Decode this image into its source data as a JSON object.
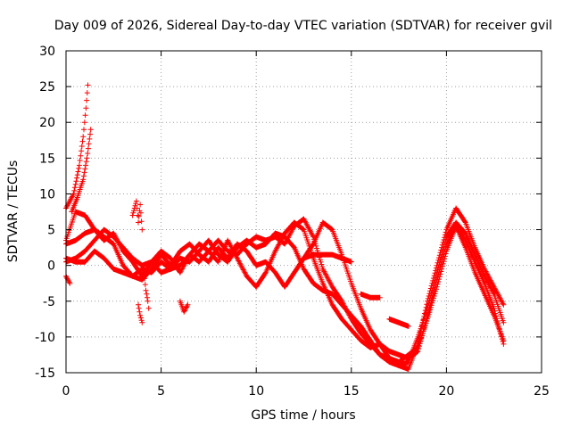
{
  "chart_data": {
    "type": "scatter",
    "title": "Day 009 of 2026, Sidereal Day-to-day VTEC variation (SDTVAR) for receiver gvil",
    "xlabel": "GPS time / hours",
    "ylabel": "SDTVAR / TECUs",
    "xlim": [
      0,
      25
    ],
    "ylim": [
      -15,
      30
    ],
    "xticks": [
      0,
      5,
      10,
      15,
      20,
      25
    ],
    "yticks": [
      -15,
      -10,
      -5,
      0,
      5,
      10,
      15,
      20,
      25,
      30
    ],
    "xtick_labels": [
      "0",
      "5",
      "10",
      "15",
      "20",
      "25"
    ],
    "ytick_labels": [
      "-15",
      "-10",
      "-5",
      "0",
      "5",
      "10",
      "15",
      "20",
      "25",
      "30"
    ],
    "grid": true,
    "marker": "+",
    "color": "#ff0000",
    "series": [
      {
        "name": "track-1",
        "points": [
          [
            0.0,
            8.0
          ],
          [
            0.4,
            10.0
          ],
          [
            0.7,
            14.0
          ],
          [
            0.9,
            18.0
          ],
          [
            1.05,
            22.0
          ],
          [
            1.15,
            25.2
          ]
        ]
      },
      {
        "name": "track-2",
        "points": [
          [
            0.3,
            7.5
          ],
          [
            0.6,
            9.5
          ],
          [
            0.9,
            12.0
          ],
          [
            1.1,
            15.0
          ],
          [
            1.3,
            19.0
          ]
        ]
      },
      {
        "name": "track-3",
        "points": [
          [
            0.0,
            3.5
          ],
          [
            0.5,
            7.5
          ],
          [
            1.0,
            7.0
          ],
          [
            1.5,
            5.0
          ],
          [
            2.0,
            3.5
          ],
          [
            2.5,
            4.5
          ],
          [
            3.0,
            2.0
          ],
          [
            3.5,
            0.5
          ],
          [
            4.0,
            -1.5
          ],
          [
            4.5,
            0.5
          ],
          [
            5.0,
            2.0
          ],
          [
            5.5,
            1.0
          ],
          [
            6.0,
            -1.0
          ],
          [
            6.5,
            1.5
          ],
          [
            7.0,
            3.0
          ],
          [
            7.5,
            2.0
          ],
          [
            8.0,
            0.5
          ],
          [
            8.5,
            3.5
          ],
          [
            9.0,
            1.0
          ],
          [
            9.5,
            -1.5
          ],
          [
            10.0,
            -3.0
          ],
          [
            10.5,
            -1.0
          ],
          [
            11.0,
            2.0
          ],
          [
            11.5,
            4.5
          ],
          [
            12.0,
            6.0
          ],
          [
            12.5,
            5.0
          ],
          [
            13.0,
            1.0
          ],
          [
            13.5,
            -2.5
          ],
          [
            14.0,
            -5.5
          ],
          [
            14.5,
            -7.5
          ],
          [
            15.0,
            -9.0
          ],
          [
            15.5,
            -10.5
          ],
          [
            16.0,
            -11.5
          ],
          [
            16.5,
            -11.0
          ],
          [
            17.0,
            -12.0
          ],
          [
            17.5,
            -12.5
          ],
          [
            18.0,
            -13.0
          ],
          [
            18.5,
            -12.0
          ],
          [
            19.0,
            -7.0
          ],
          [
            19.5,
            -2.0
          ],
          [
            20.0,
            3.0
          ],
          [
            20.5,
            5.5
          ],
          [
            21.0,
            3.5
          ],
          [
            21.5,
            0.5
          ],
          [
            22.0,
            -2.5
          ],
          [
            22.5,
            -6.0
          ],
          [
            23.0,
            -11.0
          ]
        ]
      },
      {
        "name": "track-4",
        "points": [
          [
            0.0,
            3.0
          ],
          [
            0.5,
            3.5
          ],
          [
            1.0,
            4.5
          ],
          [
            1.5,
            5.0
          ],
          [
            2.0,
            4.0
          ],
          [
            2.5,
            3.0
          ],
          [
            3.0,
            0.0
          ],
          [
            3.5,
            -1.5
          ],
          [
            4.0,
            -2.0
          ],
          [
            4.5,
            -0.5
          ],
          [
            5.0,
            1.5
          ],
          [
            5.5,
            0.0
          ],
          [
            6.0,
            2.0
          ],
          [
            6.5,
            3.0
          ],
          [
            7.0,
            1.5
          ],
          [
            7.5,
            0.5
          ],
          [
            8.0,
            2.5
          ],
          [
            8.5,
            1.0
          ],
          [
            9.0,
            3.0
          ],
          [
            9.5,
            2.0
          ],
          [
            10.0,
            0.0
          ],
          [
            10.5,
            0.5
          ],
          [
            11.0,
            -1.0
          ],
          [
            11.5,
            -3.0
          ],
          [
            12.0,
            -1.0
          ],
          [
            12.5,
            1.0
          ],
          [
            13.0,
            3.0
          ],
          [
            13.5,
            6.0
          ],
          [
            14.0,
            5.0
          ],
          [
            14.5,
            1.5
          ],
          [
            15.0,
            -2.5
          ],
          [
            15.5,
            -6.0
          ],
          [
            16.0,
            -9.0
          ],
          [
            16.5,
            -11.0
          ],
          [
            17.0,
            -13.0
          ],
          [
            17.5,
            -14.0
          ],
          [
            18.0,
            -14.5
          ],
          [
            18.5,
            -11.0
          ],
          [
            19.0,
            -5.0
          ],
          [
            19.5,
            0.0
          ],
          [
            20.0,
            5.0
          ],
          [
            20.5,
            8.0
          ],
          [
            21.0,
            6.0
          ],
          [
            21.5,
            2.5
          ],
          [
            22.0,
            -0.5
          ],
          [
            22.5,
            -3.0
          ],
          [
            23.0,
            -5.5
          ]
        ]
      },
      {
        "name": "track-5",
        "points": [
          [
            0.0,
            0.5
          ],
          [
            0.5,
            1.0
          ],
          [
            1.0,
            2.0
          ],
          [
            1.5,
            3.5
          ],
          [
            2.0,
            5.0
          ],
          [
            2.5,
            4.0
          ],
          [
            3.0,
            2.5
          ],
          [
            3.5,
            1.0
          ],
          [
            4.0,
            0.0
          ],
          [
            4.5,
            0.5
          ],
          [
            5.0,
            -1.0
          ],
          [
            5.5,
            -0.5
          ],
          [
            6.0,
            1.0
          ],
          [
            6.5,
            0.5
          ],
          [
            7.0,
            2.0
          ],
          [
            7.5,
            3.5
          ],
          [
            8.0,
            1.5
          ],
          [
            8.5,
            0.5
          ],
          [
            9.0,
            2.5
          ],
          [
            9.5,
            3.5
          ],
          [
            10.0,
            2.5
          ],
          [
            10.5,
            3.0
          ],
          [
            11.0,
            4.5
          ],
          [
            11.5,
            4.0
          ],
          [
            12.0,
            2.5
          ],
          [
            12.5,
            -0.5
          ],
          [
            13.0,
            -2.5
          ],
          [
            13.5,
            -3.5
          ],
          [
            14.0,
            -4.0
          ],
          [
            14.5,
            -5.5
          ],
          [
            15.0,
            -7.0
          ],
          [
            15.5,
            -8.5
          ],
          [
            16.0,
            -10.5
          ],
          [
            16.5,
            -12.5
          ],
          [
            17.0,
            -13.5
          ],
          [
            17.5,
            -14.0
          ],
          [
            18.0,
            -13.5
          ],
          [
            18.5,
            -10.0
          ],
          [
            19.0,
            -6.0
          ],
          [
            19.5,
            -1.0
          ],
          [
            20.0,
            4.0
          ],
          [
            20.5,
            6.0
          ],
          [
            21.0,
            4.5
          ],
          [
            21.5,
            1.5
          ],
          [
            22.0,
            -1.5
          ],
          [
            22.5,
            -4.0
          ],
          [
            23.0,
            -8.0
          ]
        ]
      },
      {
        "name": "track-6",
        "points": [
          [
            0.0,
            1.0
          ],
          [
            0.5,
            0.5
          ],
          [
            1.0,
            0.5
          ],
          [
            1.5,
            2.0
          ],
          [
            2.0,
            1.0
          ],
          [
            2.5,
            -0.5
          ],
          [
            3.0,
            -1.0
          ],
          [
            3.5,
            -1.5
          ],
          [
            4.0,
            -0.5
          ],
          [
            4.5,
            -1.0
          ],
          [
            5.0,
            0.5
          ],
          [
            5.5,
            -0.5
          ],
          [
            6.0,
            0.0
          ],
          [
            6.5,
            1.5
          ],
          [
            7.0,
            0.5
          ],
          [
            7.5,
            2.0
          ],
          [
            8.0,
            3.5
          ],
          [
            8.5,
            2.0
          ],
          [
            9.0,
            1.5
          ],
          [
            9.5,
            3.0
          ],
          [
            10.0,
            4.0
          ],
          [
            10.5,
            3.5
          ],
          [
            11.0,
            4.0
          ],
          [
            11.5,
            3.0
          ],
          [
            12.0,
            5.5
          ],
          [
            12.5,
            6.5
          ],
          [
            13.0,
            4.0
          ],
          [
            13.5,
            -0.5
          ],
          [
            14.0,
            -3.0
          ],
          [
            14.5,
            -5.0
          ],
          [
            15.0,
            -7.5
          ],
          [
            15.5,
            -9.5
          ],
          [
            16.0,
            -11.0
          ],
          [
            16.5,
            -12.5
          ],
          [
            17.0,
            -13.0
          ],
          [
            17.5,
            -13.5
          ],
          [
            18.0,
            -12.5
          ],
          [
            18.5,
            -11.5
          ],
          [
            19.0,
            -7.5
          ],
          [
            19.5,
            -3.0
          ],
          [
            20.0,
            2.0
          ],
          [
            20.5,
            5.5
          ],
          [
            21.0,
            2.5
          ],
          [
            21.5,
            -1.0
          ],
          [
            22.0,
            -4.0
          ],
          [
            22.5,
            -7.0
          ],
          [
            23.0,
            -10.5
          ]
        ]
      },
      {
        "name": "track-7",
        "points": [
          [
            12.5,
            1.0
          ],
          [
            13.0,
            1.5
          ],
          [
            13.5,
            1.5
          ],
          [
            14.0,
            1.5
          ],
          [
            14.5,
            1.0
          ],
          [
            15.0,
            0.5
          ]
        ]
      },
      {
        "name": "track-8",
        "points": [
          [
            0.0,
            -1.5
          ],
          [
            0.2,
            -2.5
          ]
        ]
      },
      {
        "name": "track-9",
        "points": [
          [
            3.5,
            7.0
          ],
          [
            3.7,
            9.0
          ],
          [
            3.8,
            6.0
          ],
          [
            3.9,
            8.5
          ],
          [
            4.0,
            5.0
          ]
        ]
      },
      {
        "name": "track-10",
        "points": [
          [
            3.8,
            -5.5
          ],
          [
            3.9,
            -7.0
          ],
          [
            4.0,
            -8.0
          ]
        ]
      },
      {
        "name": "track-11",
        "points": [
          [
            4.1,
            -1.0
          ],
          [
            4.2,
            -3.5
          ],
          [
            4.3,
            -5.0
          ],
          [
            4.35,
            -6.0
          ]
        ]
      },
      {
        "name": "track-12",
        "points": [
          [
            6.0,
            -5.0
          ],
          [
            6.2,
            -6.5
          ],
          [
            6.4,
            -5.5
          ]
        ]
      },
      {
        "name": "track-13",
        "points": [
          [
            15.5,
            -4.0
          ],
          [
            16.0,
            -4.5
          ],
          [
            16.5,
            -4.5
          ]
        ]
      },
      {
        "name": "track-14",
        "points": [
          [
            17.0,
            -7.5
          ],
          [
            17.5,
            -8.0
          ],
          [
            18.0,
            -8.5
          ]
        ]
      }
    ]
  }
}
